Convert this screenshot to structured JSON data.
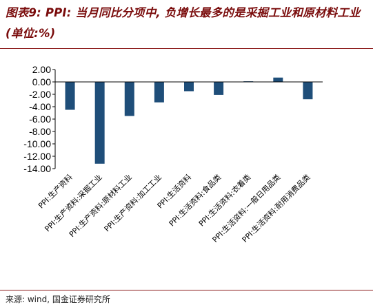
{
  "title": "图表9: PPI: 当月同比分项中, 负增长最多的是采掘工业和原材料工业 (单位:%)",
  "source": "来源: wind, 国金证券研究所",
  "colors": {
    "bar": "#1f4e79",
    "title": "#7a0c0c",
    "rule": "#8b1a1a"
  },
  "chart_data": {
    "type": "bar",
    "categories": [
      "PPI:生产资料",
      "PPI:生产资料:采掘工业",
      "PPI:生产资料:原材料工业",
      "PPI:生产资料:加工工业",
      "PPI:生活资料",
      "PPI:生活资料:食品类",
      "PPI:生活资料:衣着类",
      "PPI:生活资料:一般日用品类",
      "PPI:生活资料:耐用消费品类"
    ],
    "values": [
      -4.5,
      -13.2,
      -5.5,
      -3.3,
      -1.5,
      -2.1,
      0.1,
      0.7,
      -2.8
    ],
    "ylim": [
      -14,
      2
    ],
    "yticks": [
      "2.00",
      "0.00",
      "-2.00",
      "-4.00",
      "-6.00",
      "-8.00",
      "-10.00",
      "-12.00",
      "-14.00"
    ],
    "ytick_values": [
      2,
      0,
      -2,
      -4,
      -6,
      -8,
      -10,
      -12,
      -14
    ],
    "title": "",
    "xlabel": "",
    "ylabel": ""
  }
}
